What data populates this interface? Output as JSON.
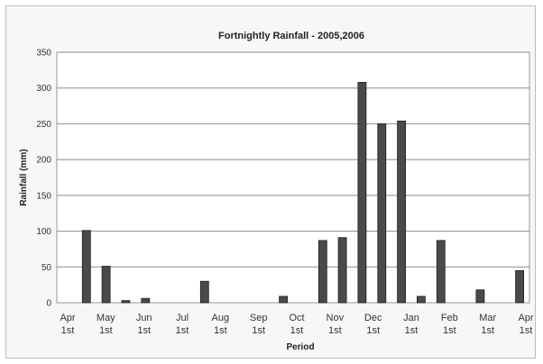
{
  "chart_data": {
    "type": "bar",
    "title": "Fortnightly Rainfall - 2005,2006",
    "xlabel": "Period",
    "ylabel": "Rainfall (mm)",
    "ylim": [
      0,
      350
    ],
    "yticks": [
      0,
      50,
      100,
      150,
      200,
      250,
      300,
      350
    ],
    "grid": true,
    "legend": "none",
    "bar_color": "#4a4a4a",
    "x_tick_labels": [
      [
        "Apr",
        "1st"
      ],
      [
        "May",
        "1st"
      ],
      [
        "Jun",
        "1st"
      ],
      [
        "Jul",
        "1st"
      ],
      [
        "Aug",
        "1st"
      ],
      [
        "Sep",
        "1st"
      ],
      [
        "Oct",
        "1st"
      ],
      [
        "Nov",
        "1st"
      ],
      [
        "Dec",
        "1st"
      ],
      [
        "Jan",
        "1st"
      ],
      [
        "Feb",
        "1st"
      ],
      [
        "Mar",
        "1st"
      ],
      [
        "Apr",
        "1st"
      ]
    ],
    "values": [
      0,
      101,
      51,
      3,
      6,
      0,
      0,
      30,
      0,
      0,
      0,
      9,
      0,
      87,
      91,
      308,
      250,
      254,
      9,
      87,
      0,
      18,
      0,
      45
    ]
  }
}
